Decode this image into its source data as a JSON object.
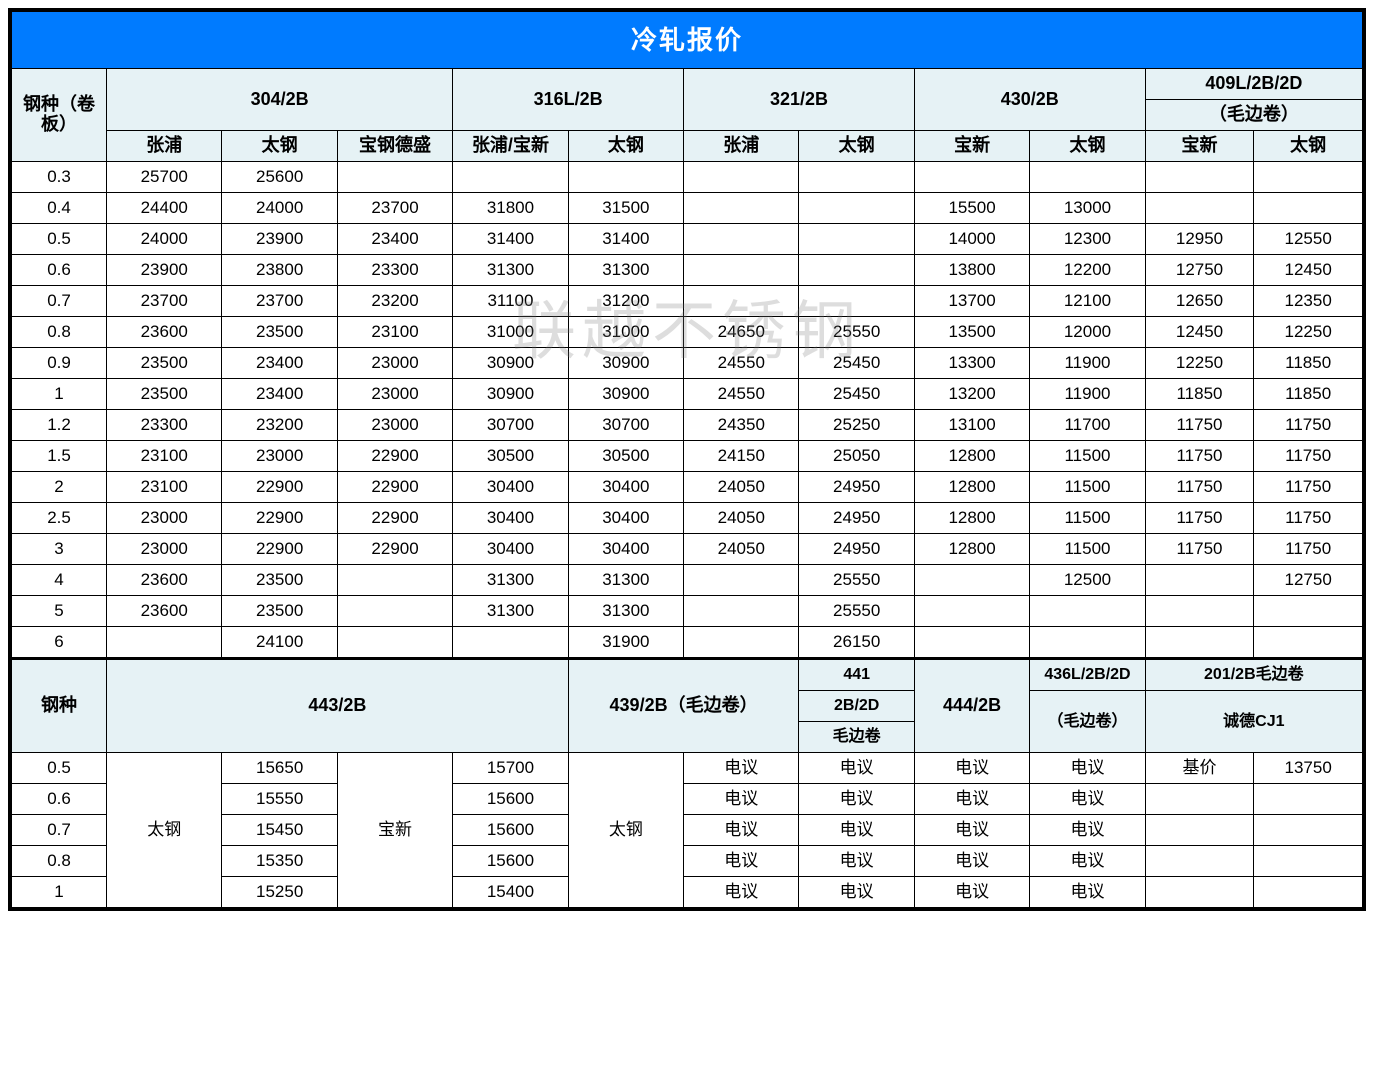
{
  "title": "冷轧报价",
  "watermark": "联越不锈钢",
  "colors": {
    "title_bg": "#007bff",
    "title_fg": "#ffffff",
    "header_bg": "#e6f2f5",
    "border": "#000000",
    "background": "#ffffff"
  },
  "table1": {
    "row_label": "钢种（卷板）",
    "groups": [
      {
        "label": "304/2B",
        "subs": [
          "张浦",
          "太钢",
          "宝钢德盛"
        ]
      },
      {
        "label": "316L/2B",
        "subs": [
          "张浦/宝新",
          "太钢"
        ]
      },
      {
        "label": "321/2B",
        "subs": [
          "张浦",
          "太钢"
        ]
      },
      {
        "label": "430/2B",
        "subs": [
          "宝新",
          "太钢"
        ]
      },
      {
        "label": "409L/2B/2D",
        "sub_label": "（毛边卷）",
        "subs": [
          "宝新",
          "太钢"
        ]
      }
    ],
    "thicknesses": [
      "0.3",
      "0.4",
      "0.5",
      "0.6",
      "0.7",
      "0.8",
      "0.9",
      "1",
      "1.2",
      "1.5",
      "2",
      "2.5",
      "3",
      "4",
      "5",
      "6"
    ],
    "rows": [
      [
        "25700",
        "25600",
        "",
        "",
        "",
        "",
        "",
        "",
        "",
        "",
        ""
      ],
      [
        "24400",
        "24000",
        "23700",
        "31800",
        "31500",
        "",
        "",
        "15500",
        "13000",
        "",
        ""
      ],
      [
        "24000",
        "23900",
        "23400",
        "31400",
        "31400",
        "",
        "",
        "14000",
        "12300",
        "12950",
        "12550"
      ],
      [
        "23900",
        "23800",
        "23300",
        "31300",
        "31300",
        "",
        "",
        "13800",
        "12200",
        "12750",
        "12450"
      ],
      [
        "23700",
        "23700",
        "23200",
        "31100",
        "31200",
        "",
        "",
        "13700",
        "12100",
        "12650",
        "12350"
      ],
      [
        "23600",
        "23500",
        "23100",
        "31000",
        "31000",
        "24650",
        "25550",
        "13500",
        "12000",
        "12450",
        "12250"
      ],
      [
        "23500",
        "23400",
        "23000",
        "30900",
        "30900",
        "24550",
        "25450",
        "13300",
        "11900",
        "12250",
        "11850"
      ],
      [
        "23500",
        "23400",
        "23000",
        "30900",
        "30900",
        "24550",
        "25450",
        "13200",
        "11900",
        "11850",
        "11850"
      ],
      [
        "23300",
        "23200",
        "23000",
        "30700",
        "30700",
        "24350",
        "25250",
        "13100",
        "11700",
        "11750",
        "11750"
      ],
      [
        "23100",
        "23000",
        "22900",
        "30500",
        "30500",
        "24150",
        "25050",
        "12800",
        "11500",
        "11750",
        "11750"
      ],
      [
        "23100",
        "22900",
        "22900",
        "30400",
        "30400",
        "24050",
        "24950",
        "12800",
        "11500",
        "11750",
        "11750"
      ],
      [
        "23000",
        "22900",
        "22900",
        "30400",
        "30400",
        "24050",
        "24950",
        "12800",
        "11500",
        "11750",
        "11750"
      ],
      [
        "23000",
        "22900",
        "22900",
        "30400",
        "30400",
        "24050",
        "24950",
        "12800",
        "11500",
        "11750",
        "11750"
      ],
      [
        "23600",
        "23500",
        "",
        "31300",
        "31300",
        "",
        "25550",
        "",
        "12500",
        "",
        "12750"
      ],
      [
        "23600",
        "23500",
        "",
        "31300",
        "31300",
        "",
        "25550",
        "",
        "",
        "",
        ""
      ],
      [
        "",
        "24100",
        "",
        "",
        "31900",
        "",
        "26150",
        "",
        "",
        "",
        ""
      ]
    ]
  },
  "table2": {
    "row_label": "钢种",
    "h443": "443/2B",
    "h439": "439/2B（毛边卷）",
    "h441a": "441",
    "h441b": "2B/2D",
    "h441c": "毛边卷",
    "h444": "444/2B",
    "h436a": "436L/2B/2D",
    "h436b": "（毛边卷）",
    "h201a": "201/2B毛边卷",
    "h201b": "诚德CJ1",
    "span_taigang": "太钢",
    "span_baoxin": "宝新",
    "span_taigang2": "太钢",
    "base_price_label": "基价",
    "base_price_value": "13750",
    "dianyi": "电议",
    "thicknesses": [
      "0.5",
      "0.6",
      "0.7",
      "0.8",
      "1"
    ],
    "col2": [
      "15650",
      "15550",
      "15450",
      "15350",
      "15250"
    ],
    "col4": [
      "15700",
      "15600",
      "15600",
      "15600",
      "15400"
    ]
  }
}
